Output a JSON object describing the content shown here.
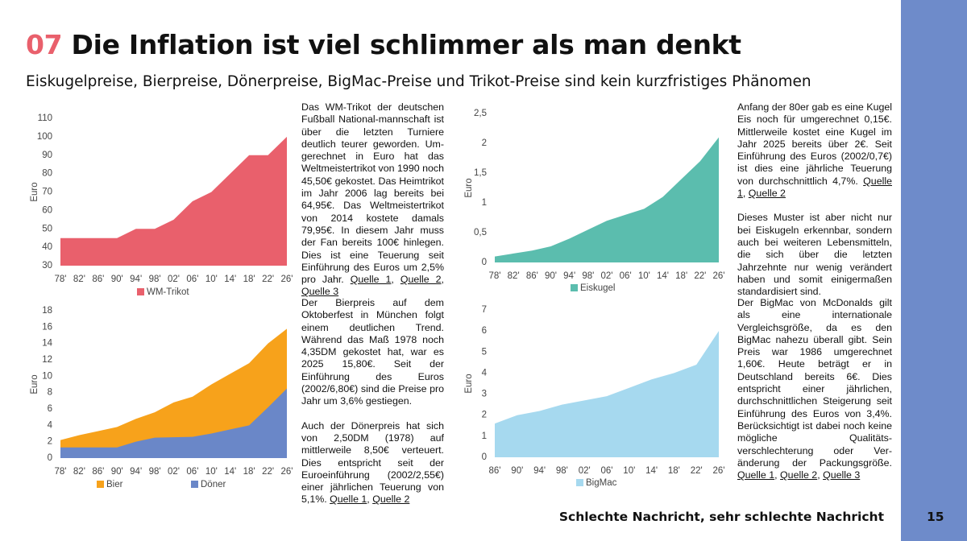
{
  "header": {
    "number": "07",
    "title": "Die Inflation ist viel schlimmer als man denkt",
    "subtitle": "Eiskugelpreise, Bierpreise, Dönerpreise, BigMac-Preise und Trikot-Preise sind kein kurzfristiges Phänomen"
  },
  "chart_data": [
    {
      "type": "area",
      "y_label": "Euro",
      "categories": [
        "78'",
        "82'",
        "86'",
        "90'",
        "94'",
        "98'",
        "02'",
        "06'",
        "10'",
        "14'",
        "18'",
        "22'",
        "26'"
      ],
      "series": [
        {
          "name": "WM-Trikot",
          "color": "#e9606c",
          "values": [
            45,
            45,
            45,
            45,
            50,
            50,
            55,
            65,
            70,
            80,
            90,
            90,
            100
          ]
        }
      ],
      "ylim": [
        30,
        110
      ],
      "yticks": [
        30,
        40,
        50,
        60,
        70,
        80,
        90,
        100,
        110
      ]
    },
    {
      "type": "area",
      "y_label": "Euro",
      "categories": [
        "78'",
        "82'",
        "86'",
        "90'",
        "94'",
        "98'",
        "02'",
        "06'",
        "10'",
        "14'",
        "18'",
        "22'",
        "26'"
      ],
      "series": [
        {
          "name": "Eiskugel",
          "color": "#5bbdae",
          "values": [
            0.1,
            0.15,
            0.2,
            0.27,
            0.4,
            0.55,
            0.7,
            0.8,
            0.9,
            1.1,
            1.4,
            1.7,
            2.1
          ]
        }
      ],
      "ylim": [
        0,
        2.5
      ],
      "yticks": [
        0,
        {
          "value": 0.5,
          "label": "0,5"
        },
        1,
        {
          "value": 1.5,
          "label": "1,5"
        },
        2,
        {
          "value": 2.5,
          "label": "2,5"
        }
      ]
    },
    {
      "type": "area",
      "y_label": "Euro",
      "categories": [
        "78'",
        "82'",
        "86'",
        "90'",
        "94'",
        "98'",
        "02'",
        "06'",
        "10'",
        "14'",
        "18'",
        "22'",
        "26'"
      ],
      "series": [
        {
          "name": "Bier",
          "color": "#f7a21b",
          "values": [
            2.2,
            2.8,
            3.3,
            3.8,
            4.8,
            5.6,
            6.8,
            7.5,
            9.0,
            10.3,
            11.6,
            14.0,
            15.8
          ]
        },
        {
          "name": "Döner",
          "color": "#6a87c8",
          "values": [
            1.3,
            1.3,
            1.3,
            1.3,
            2.0,
            2.5,
            2.55,
            2.6,
            3.0,
            3.5,
            4.0,
            6.2,
            8.5
          ]
        }
      ],
      "ylim": [
        0,
        18
      ],
      "yticks": [
        0,
        2,
        4,
        6,
        8,
        10,
        12,
        14,
        16,
        18
      ]
    },
    {
      "type": "area",
      "y_label": "Euro",
      "categories": [
        "86'",
        "90'",
        "94'",
        "98'",
        "02'",
        "06'",
        "10'",
        "14'",
        "18'",
        "22'",
        "26'"
      ],
      "series": [
        {
          "name": "BigMac",
          "color": "#a6d9ef",
          "values": [
            1.6,
            2.0,
            2.2,
            2.5,
            2.7,
            2.9,
            3.3,
            3.7,
            4.0,
            4.4,
            6.0
          ]
        }
      ],
      "ylim": [
        0,
        7
      ],
      "yticks": [
        0,
        1,
        2,
        3,
        4,
        5,
        6,
        7
      ]
    }
  ],
  "source_separator": ", ",
  "columns": [
    {
      "paragraphs": [
        {
          "text": "Das WM-Trikot der deutschen Fußball National-mannschaft ist über die letzten Turniere deutlich teurer geworden. Um-gerechnet in Euro hat das Weltmeistertrikot von 1990 noch 45,50€ gekostet. Das Heimtrikot im Jahr 2006 lag bereits bei 64,95€. Das Weltmeistertrikot von 2014 kostete damals 79,95€. In diesem Jahr muss der Fan bereits 100€ hinlegen. Dies ist eine Teuerung seit Einführung des Euros um 2,5% pro Jahr.",
          "sources": [
            "Quelle 1",
            "Quelle 2",
            "Quelle 3"
          ]
        }
      ]
    },
    {
      "paragraphs": [
        {
          "text": "Anfang der 80er gab es eine Kugel Eis noch für umgerechnet 0,15€. Mittlerweile kostet eine Kugel im Jahr 2025 bereits über 2€. Seit Einführung des Euros (2002/0,7€) ist dies eine jährliche Teuerung von durchschnittlich 4,7%.",
          "sources": [
            "Quelle 1",
            "Quelle 2"
          ]
        },
        {
          "text": "Dieses Muster ist aber nicht nur bei Eiskugeln erkennbar, sondern auch bei weiteren Lebensmitteln, die sich über die letzten Jahrzehnte nur wenig verändert haben und somit einigermaßen standardisiert sind.",
          "sources": []
        }
      ]
    },
    {
      "paragraphs": [
        {
          "text": "Der Bierpreis auf dem Oktoberfest in München folgt einem deutlichen Trend. Während das Maß 1978 noch 4,35DM gekostet hat, war es 2025 15,80€. Seit der Einführung des Euros (2002/6,80€) sind die Preise pro Jahr um 3,6% gestiegen.",
          "sources": []
        },
        {
          "text": "Auch der Dönerpreis hat sich von 2,50DM (1978) auf mittlerweile 8,50€ verteuert. Dies entspricht seit der Euroeinführung (2002/2,55€) einer jährlichen Teuerung von 5,1%.",
          "sources": [
            "Quelle 1",
            "Quelle 2"
          ]
        }
      ]
    },
    {
      "paragraphs": [
        {
          "text": "Der BigMac von McDonalds gilt als eine internationale Vergleichsgröße, da es den BigMac nahezu überall gibt. Sein Preis war 1986 umgerechnet 1,60€. Heute beträgt er in Deutschland bereits 6€. Dies entspricht einer jährlichen, durchschnittlichen Steigerung seit Einführung des Euros von 3,4%. Berücksichtigt ist dabei noch keine mögliche Qualitäts-verschlechterung oder Ver-änderung der Packungsgröße.",
          "sources": [
            "Quelle 1",
            "Quelle 2",
            "Quelle 3"
          ]
        }
      ]
    }
  ],
  "footer": {
    "text": "Schlechte Nachricht, sehr schlechte Nachricht",
    "page": "15"
  }
}
